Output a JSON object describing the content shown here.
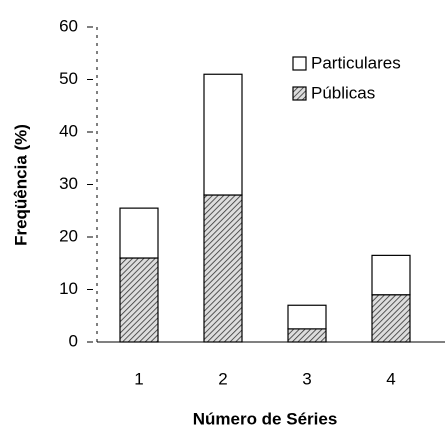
{
  "chart_data": {
    "type": "stacked_bar",
    "xlabel": "Número de Séries",
    "ylabel": "Freqüência (%)",
    "categories": [
      "1",
      "2",
      "3",
      "4"
    ],
    "series": [
      {
        "name": "Públicas",
        "color": "#333333",
        "pattern": "hatch",
        "values": [
          16,
          28,
          2.5,
          9
        ]
      },
      {
        "name": "Particulares",
        "color": "#ffffff",
        "values": [
          9.5,
          23,
          4.5,
          7.5
        ]
      }
    ],
    "ylim": [
      0,
      60
    ],
    "yticks": [
      0,
      10,
      20,
      30,
      40,
      50,
      60
    ],
    "legend": "upper right"
  }
}
